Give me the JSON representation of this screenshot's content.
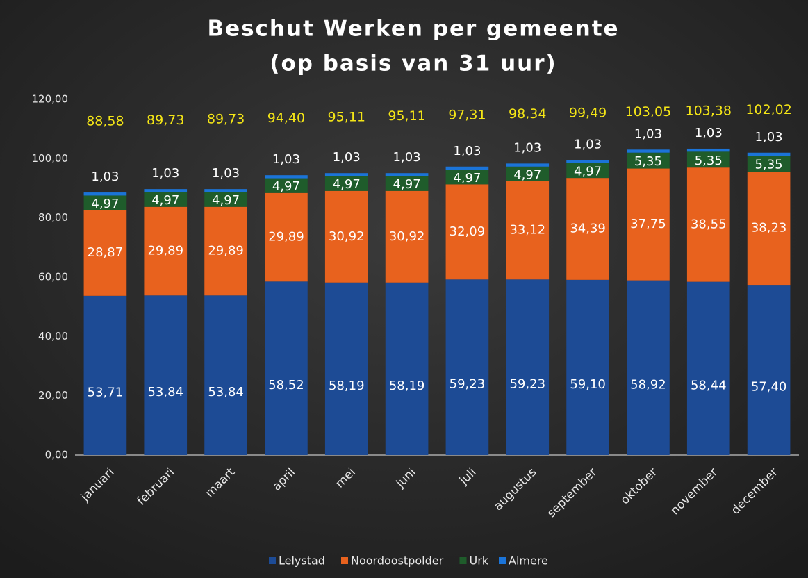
{
  "chart_data": {
    "type": "stacked_bar",
    "title": [
      "Beschut Werken per gemeente",
      "(op basis van 31 uur)"
    ],
    "categories": [
      "januari",
      "februari",
      "maart",
      "april",
      "mei",
      "juni",
      "juli",
      "augustus",
      "september",
      "oktober",
      "november",
      "december"
    ],
    "series": [
      {
        "name": "Lelystad",
        "color": "#1d4b95",
        "values": [
          53.71,
          53.84,
          53.84,
          58.52,
          58.19,
          58.19,
          59.23,
          59.23,
          59.1,
          58.92,
          58.44,
          57.4
        ],
        "value_labels": [
          "53,71",
          "53,84",
          "53,84",
          "58,52",
          "58,19",
          "58,19",
          "59,23",
          "59,23",
          "59,10",
          "58,92",
          "58,44",
          "57,40"
        ]
      },
      {
        "name": "Noordoostpolder",
        "color": "#e8621e",
        "values": [
          28.87,
          29.89,
          29.89,
          29.89,
          30.92,
          30.92,
          32.09,
          33.12,
          34.39,
          37.75,
          38.55,
          38.23
        ],
        "value_labels": [
          "28,87",
          "29,89",
          "29,89",
          "29,89",
          "30,92",
          "30,92",
          "32,09",
          "33,12",
          "34,39",
          "37,75",
          "38,55",
          "38,23"
        ]
      },
      {
        "name": "Urk",
        "color": "#1f5c2b",
        "values": [
          4.97,
          4.97,
          4.97,
          4.97,
          4.97,
          4.97,
          4.97,
          4.97,
          4.97,
          5.35,
          5.35,
          5.35
        ],
        "value_labels": [
          "4,97",
          "4,97",
          "4,97",
          "4,97",
          "4,97",
          "4,97",
          "4,97",
          "4,97",
          "4,97",
          "5,35",
          "5,35",
          "5,35"
        ]
      },
      {
        "name": "Almere",
        "color": "#1b74d8",
        "values": [
          1.03,
          1.03,
          1.03,
          1.03,
          1.03,
          1.03,
          1.03,
          1.03,
          1.03,
          1.03,
          1.03,
          1.03
        ],
        "value_labels": [
          "1,03",
          "1,03",
          "1,03",
          "1,03",
          "1,03",
          "1,03",
          "1,03",
          "1,03",
          "1,03",
          "1,03",
          "1,03",
          "1,03"
        ]
      }
    ],
    "totals": {
      "values": [
        88.58,
        89.73,
        89.73,
        94.4,
        95.11,
        95.11,
        97.31,
        98.34,
        99.49,
        103.05,
        103.38,
        102.02
      ],
      "value_labels": [
        "88,58",
        "89,73",
        "89,73",
        "94,40",
        "95,11",
        "95,11",
        "97,31",
        "98,34",
        "99,49",
        "103,05",
        "103,38",
        "102,02"
      ]
    },
    "ylim": [
      0,
      120
    ],
    "yticks": [
      {
        "value": 0,
        "label": "0,00"
      },
      {
        "value": 20,
        "label": "20,00"
      },
      {
        "value": 40,
        "label": "40,00"
      },
      {
        "value": 60,
        "label": "60,00"
      },
      {
        "value": 80,
        "label": "80,00"
      },
      {
        "value": 100,
        "label": "100,00"
      },
      {
        "value": 120,
        "label": "120,00"
      }
    ],
    "grid": false,
    "legend": "bottom"
  }
}
